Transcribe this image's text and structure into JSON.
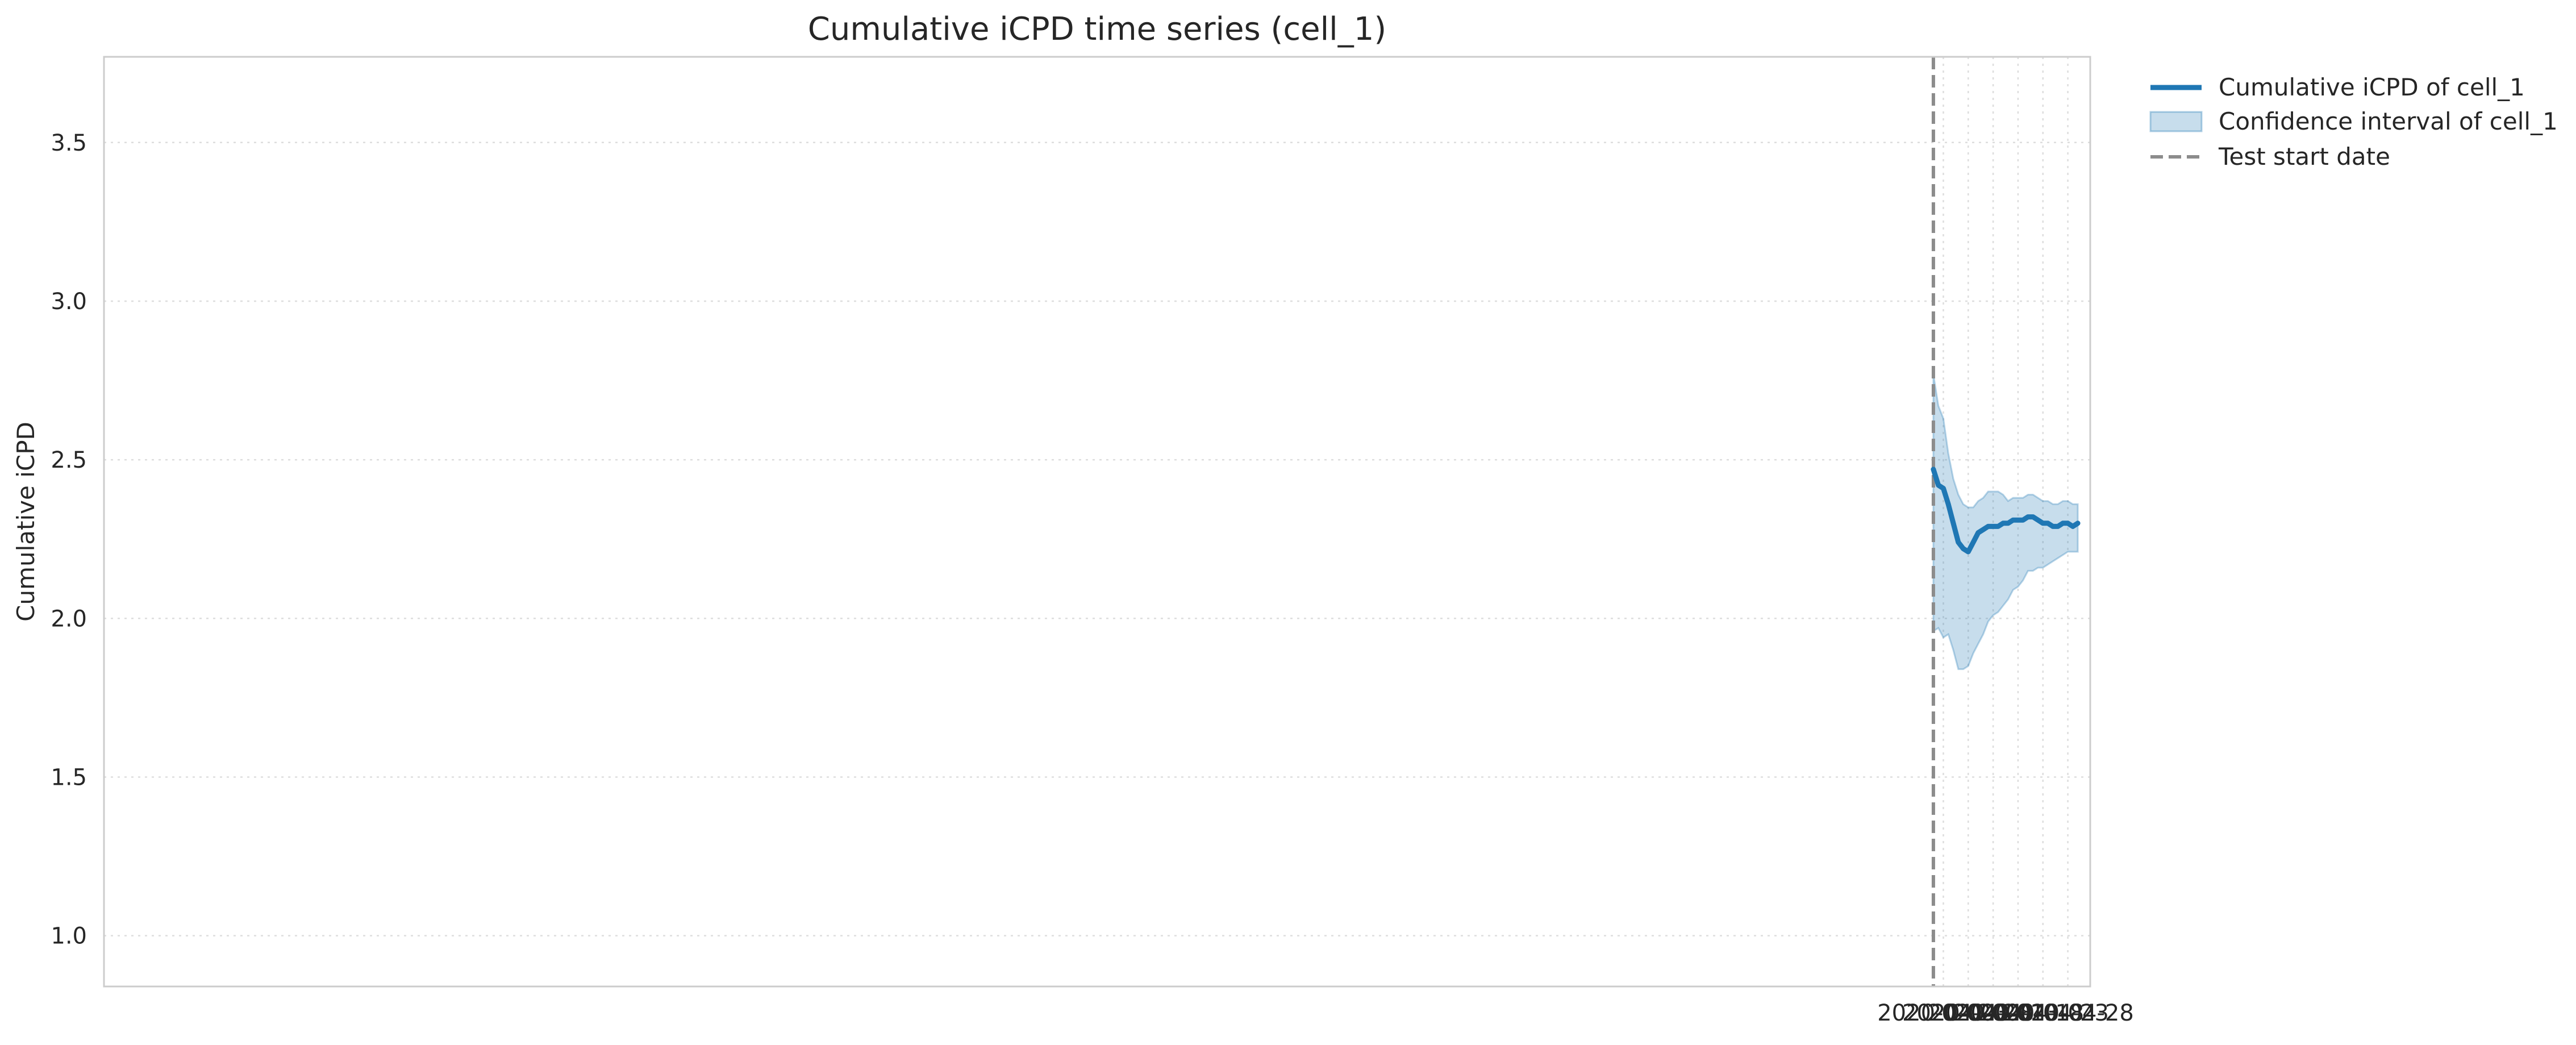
{
  "chart_data": {
    "type": "line",
    "title": "Cumulative iCPD time series (cell_1)",
    "xlabel": "",
    "ylabel": "Cumulative iCPD",
    "x_tick_labels": [
      "2020-04-03",
      "2020-04-08",
      "2020-04-13",
      "2020-04-18",
      "2020-04-23",
      "2020-04-28"
    ],
    "y_tick_labels": [
      "1.0",
      "1.5",
      "2.0",
      "2.5",
      "3.0",
      "3.5"
    ],
    "x_ticks": [
      "2020-04-03",
      "2020-04-08",
      "2020-04-13",
      "2020-04-18",
      "2020-04-23",
      "2020-04-28"
    ],
    "y_ticks": [
      1.0,
      1.5,
      2.0,
      2.5,
      3.0,
      3.5
    ],
    "xlim": [
      "2019-03-30T14:00",
      "2020-05-02T12:00"
    ],
    "ylim": [
      0.84,
      3.77
    ],
    "grid": true,
    "legend_position": "outside-top-right",
    "test_start_date": "2020-04-01",
    "series": [
      {
        "name": "Cumulative iCPD of cell_1",
        "color": "#1f77b4",
        "x": [
          "2020-04-01",
          "2020-04-02",
          "2020-04-03",
          "2020-04-04",
          "2020-04-05",
          "2020-04-06",
          "2020-04-07",
          "2020-04-08",
          "2020-04-09",
          "2020-04-10",
          "2020-04-11",
          "2020-04-12",
          "2020-04-13",
          "2020-04-14",
          "2020-04-15",
          "2020-04-16",
          "2020-04-17",
          "2020-04-18",
          "2020-04-19",
          "2020-04-20",
          "2020-04-21",
          "2020-04-22",
          "2020-04-23",
          "2020-04-24",
          "2020-04-25",
          "2020-04-26",
          "2020-04-27",
          "2020-04-28",
          "2020-04-29",
          "2020-04-30"
        ],
        "values": [
          2.47,
          2.42,
          2.41,
          2.36,
          2.3,
          2.24,
          2.22,
          2.21,
          2.24,
          2.27,
          2.28,
          2.29,
          2.29,
          2.29,
          2.3,
          2.3,
          2.31,
          2.31,
          2.31,
          2.32,
          2.32,
          2.31,
          2.3,
          2.3,
          2.29,
          2.29,
          2.3,
          2.3,
          2.29,
          2.3
        ]
      },
      {
        "name": "Confidence interval of cell_1",
        "color": "#1f77b4",
        "x": [
          "2020-04-01",
          "2020-04-02",
          "2020-04-03",
          "2020-04-04",
          "2020-04-05",
          "2020-04-06",
          "2020-04-07",
          "2020-04-08",
          "2020-04-09",
          "2020-04-10",
          "2020-04-11",
          "2020-04-12",
          "2020-04-13",
          "2020-04-14",
          "2020-04-15",
          "2020-04-16",
          "2020-04-17",
          "2020-04-18",
          "2020-04-19",
          "2020-04-20",
          "2020-04-21",
          "2020-04-22",
          "2020-04-23",
          "2020-04-24",
          "2020-04-25",
          "2020-04-26",
          "2020-04-27",
          "2020-04-28",
          "2020-04-29",
          "2020-04-30"
        ],
        "lower": [
          1.96,
          1.97,
          1.94,
          1.95,
          1.9,
          1.84,
          1.84,
          1.85,
          1.89,
          1.92,
          1.95,
          1.99,
          2.01,
          2.02,
          2.04,
          2.06,
          2.09,
          2.1,
          2.12,
          2.15,
          2.15,
          2.16,
          2.16,
          2.17,
          2.18,
          2.19,
          2.2,
          2.21,
          2.21,
          2.21
        ],
        "upper": [
          2.77,
          2.67,
          2.63,
          2.52,
          2.44,
          2.39,
          2.36,
          2.35,
          2.35,
          2.37,
          2.38,
          2.4,
          2.4,
          2.4,
          2.39,
          2.37,
          2.38,
          2.38,
          2.38,
          2.39,
          2.39,
          2.38,
          2.37,
          2.37,
          2.36,
          2.36,
          2.37,
          2.37,
          2.36,
          2.36
        ]
      }
    ],
    "legend": [
      {
        "label": "Cumulative iCPD of cell_1",
        "kind": "line",
        "color": "#1f77b4"
      },
      {
        "label": "Confidence interval of cell_1",
        "kind": "patch",
        "color": "#1f77b4"
      },
      {
        "label": "Test start date",
        "kind": "dashed-line",
        "color": "#7f7f7f"
      }
    ]
  }
}
